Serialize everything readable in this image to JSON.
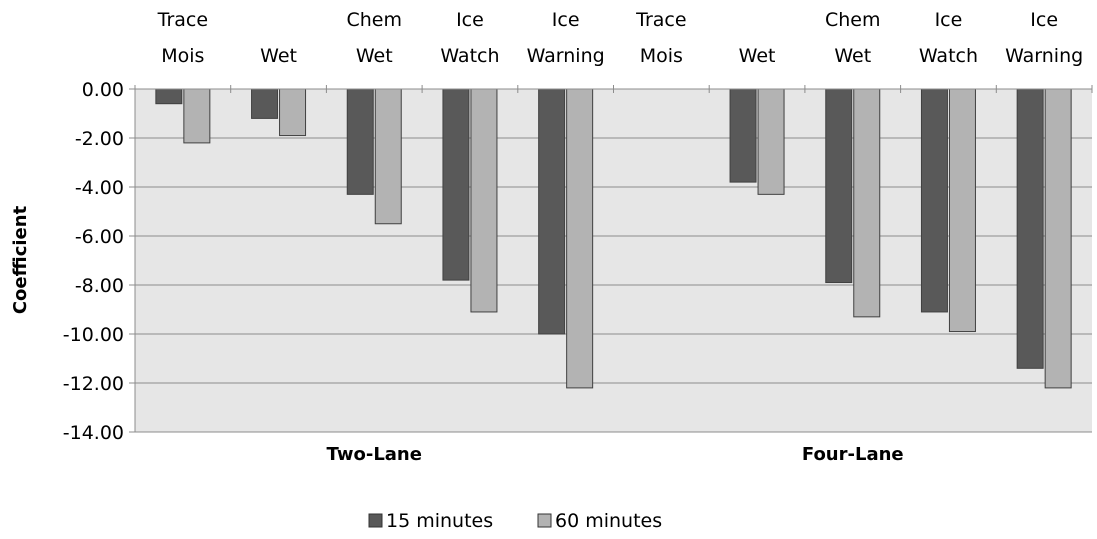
{
  "chart_data": {
    "type": "bar",
    "ylabel": "Coefficient",
    "ylim": [
      -14,
      0
    ],
    "yticks": [
      "0.00",
      "-2.00",
      "-4.00",
      "-6.00",
      "-8.00",
      "-10.00",
      "-12.00",
      "-14.00"
    ],
    "grid": true,
    "legend_position": "bottom",
    "groups": [
      {
        "name": "Two-Lane",
        "categories": [
          {
            "line1": "Trace",
            "line2": "Mois"
          },
          {
            "line1": "",
            "line2": "Wet"
          },
          {
            "line1": "Chem",
            "line2": "Wet"
          },
          {
            "line1": "Ice",
            "line2": "Watch"
          },
          {
            "line1": "Ice",
            "line2": "Warning"
          }
        ]
      },
      {
        "name": "Four-Lane",
        "categories": [
          {
            "line1": "Trace",
            "line2": "Mois"
          },
          {
            "line1": "",
            "line2": "Wet"
          },
          {
            "line1": "Chem",
            "line2": "Wet"
          },
          {
            "line1": "Ice",
            "line2": "Watch"
          },
          {
            "line1": "Ice",
            "line2": "Warning"
          }
        ]
      }
    ],
    "series": [
      {
        "name": "15 minutes",
        "color": "#595959",
        "values": [
          -0.6,
          -1.2,
          -4.3,
          -7.8,
          -10.0,
          0,
          -3.8,
          -7.9,
          -9.1,
          -11.4
        ]
      },
      {
        "name": "60 minutes",
        "color": "#b3b3b3",
        "values": [
          -2.2,
          -1.9,
          -5.5,
          -9.1,
          -12.2,
          0,
          -4.3,
          -9.3,
          -9.9,
          -12.2
        ]
      }
    ]
  }
}
